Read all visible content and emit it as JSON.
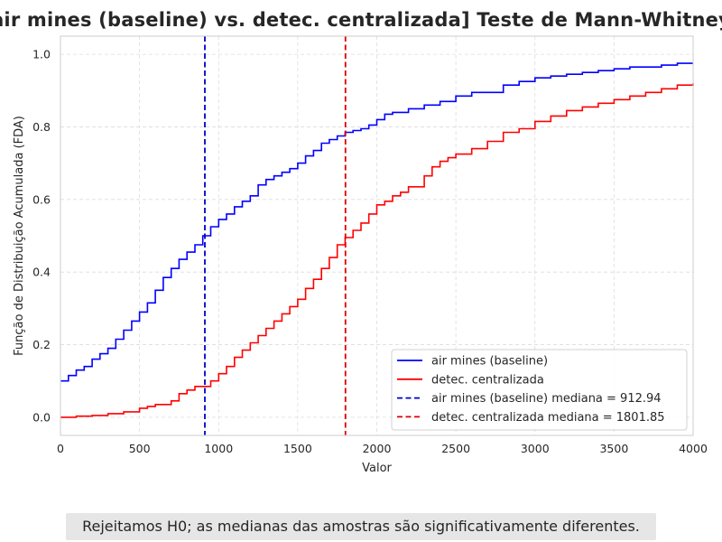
{
  "chart_data": {
    "type": "line",
    "title": "air mines (baseline) vs. detec. centralizada] Teste de Mann-Whitney",
    "xlabel": "Valor",
    "ylabel": "Função de Distribuição Acumulada (FDA)",
    "xlim": [
      0,
      4000
    ],
    "ylim": [
      -0.05,
      1.05
    ],
    "xticks": [
      0,
      500,
      1000,
      1500,
      2000,
      2500,
      3000,
      3500,
      4000
    ],
    "yticks": [
      0.0,
      0.2,
      0.4,
      0.6,
      0.8,
      1.0
    ],
    "grid": true,
    "legend_position": "lower-right",
    "series": [
      {
        "name": "air mines (baseline)",
        "color": "#0000ff",
        "style": "step",
        "points": [
          [
            0,
            0.1
          ],
          [
            50,
            0.115
          ],
          [
            100,
            0.13
          ],
          [
            150,
            0.14
          ],
          [
            200,
            0.16
          ],
          [
            250,
            0.175
          ],
          [
            300,
            0.19
          ],
          [
            350,
            0.215
          ],
          [
            400,
            0.24
          ],
          [
            450,
            0.265
          ],
          [
            500,
            0.29
          ],
          [
            550,
            0.315
          ],
          [
            600,
            0.35
          ],
          [
            650,
            0.385
          ],
          [
            700,
            0.41
          ],
          [
            750,
            0.435
          ],
          [
            800,
            0.455
          ],
          [
            850,
            0.475
          ],
          [
            900,
            0.5
          ],
          [
            950,
            0.525
          ],
          [
            1000,
            0.545
          ],
          [
            1050,
            0.56
          ],
          [
            1100,
            0.58
          ],
          [
            1150,
            0.595
          ],
          [
            1200,
            0.61
          ],
          [
            1250,
            0.64
          ],
          [
            1300,
            0.655
          ],
          [
            1350,
            0.665
          ],
          [
            1400,
            0.675
          ],
          [
            1450,
            0.685
          ],
          [
            1500,
            0.7
          ],
          [
            1550,
            0.72
          ],
          [
            1600,
            0.735
          ],
          [
            1650,
            0.755
          ],
          [
            1700,
            0.765
          ],
          [
            1750,
            0.775
          ],
          [
            1800,
            0.785
          ],
          [
            1850,
            0.79
          ],
          [
            1900,
            0.795
          ],
          [
            1950,
            0.805
          ],
          [
            2000,
            0.82
          ],
          [
            2050,
            0.835
          ],
          [
            2100,
            0.84
          ],
          [
            2200,
            0.85
          ],
          [
            2300,
            0.86
          ],
          [
            2400,
            0.87
          ],
          [
            2500,
            0.885
          ],
          [
            2600,
            0.895
          ],
          [
            2700,
            0.895
          ],
          [
            2800,
            0.915
          ],
          [
            2900,
            0.925
          ],
          [
            3000,
            0.935
          ],
          [
            3100,
            0.94
          ],
          [
            3200,
            0.945
          ],
          [
            3300,
            0.95
          ],
          [
            3400,
            0.955
          ],
          [
            3500,
            0.96
          ],
          [
            3600,
            0.965
          ],
          [
            3700,
            0.965
          ],
          [
            3800,
            0.97
          ],
          [
            3900,
            0.975
          ],
          [
            4000,
            0.975
          ]
        ]
      },
      {
        "name": "detec. centralizada",
        "color": "#ff0000",
        "style": "step",
        "points": [
          [
            0,
            0.0
          ],
          [
            100,
            0.003
          ],
          [
            200,
            0.005
          ],
          [
            300,
            0.01
          ],
          [
            400,
            0.015
          ],
          [
            500,
            0.025
          ],
          [
            550,
            0.03
          ],
          [
            600,
            0.035
          ],
          [
            700,
            0.045
          ],
          [
            750,
            0.065
          ],
          [
            800,
            0.075
          ],
          [
            850,
            0.085
          ],
          [
            950,
            0.1
          ],
          [
            1000,
            0.12
          ],
          [
            1050,
            0.14
          ],
          [
            1100,
            0.165
          ],
          [
            1150,
            0.185
          ],
          [
            1200,
            0.205
          ],
          [
            1250,
            0.225
          ],
          [
            1300,
            0.245
          ],
          [
            1350,
            0.265
          ],
          [
            1400,
            0.285
          ],
          [
            1450,
            0.305
          ],
          [
            1500,
            0.325
          ],
          [
            1550,
            0.355
          ],
          [
            1600,
            0.38
          ],
          [
            1650,
            0.41
          ],
          [
            1700,
            0.44
          ],
          [
            1750,
            0.475
          ],
          [
            1800,
            0.495
          ],
          [
            1850,
            0.515
          ],
          [
            1900,
            0.535
          ],
          [
            1950,
            0.56
          ],
          [
            2000,
            0.585
          ],
          [
            2050,
            0.595
          ],
          [
            2100,
            0.61
          ],
          [
            2150,
            0.62
          ],
          [
            2200,
            0.635
          ],
          [
            2300,
            0.665
          ],
          [
            2350,
            0.69
          ],
          [
            2400,
            0.705
          ],
          [
            2450,
            0.715
          ],
          [
            2500,
            0.725
          ],
          [
            2600,
            0.74
          ],
          [
            2700,
            0.76
          ],
          [
            2800,
            0.785
          ],
          [
            2900,
            0.795
          ],
          [
            3000,
            0.815
          ],
          [
            3100,
            0.83
          ],
          [
            3200,
            0.845
          ],
          [
            3300,
            0.855
          ],
          [
            3400,
            0.865
          ],
          [
            3500,
            0.875
          ],
          [
            3600,
            0.885
          ],
          [
            3700,
            0.895
          ],
          [
            3800,
            0.905
          ],
          [
            3900,
            0.915
          ],
          [
            4000,
            0.92
          ]
        ]
      }
    ],
    "vlines": [
      {
        "name": "air mines (baseline) mediana = 912.94",
        "x": 912.94,
        "color": "#0000cc",
        "style": "dashed"
      },
      {
        "name": "detec. centralizada mediana = 1801.85",
        "x": 1801.85,
        "color": "#dd0000",
        "style": "dashed"
      }
    ]
  },
  "conclusion": "Rejeitamos H0; as medianas das amostras são significativamente diferentes."
}
